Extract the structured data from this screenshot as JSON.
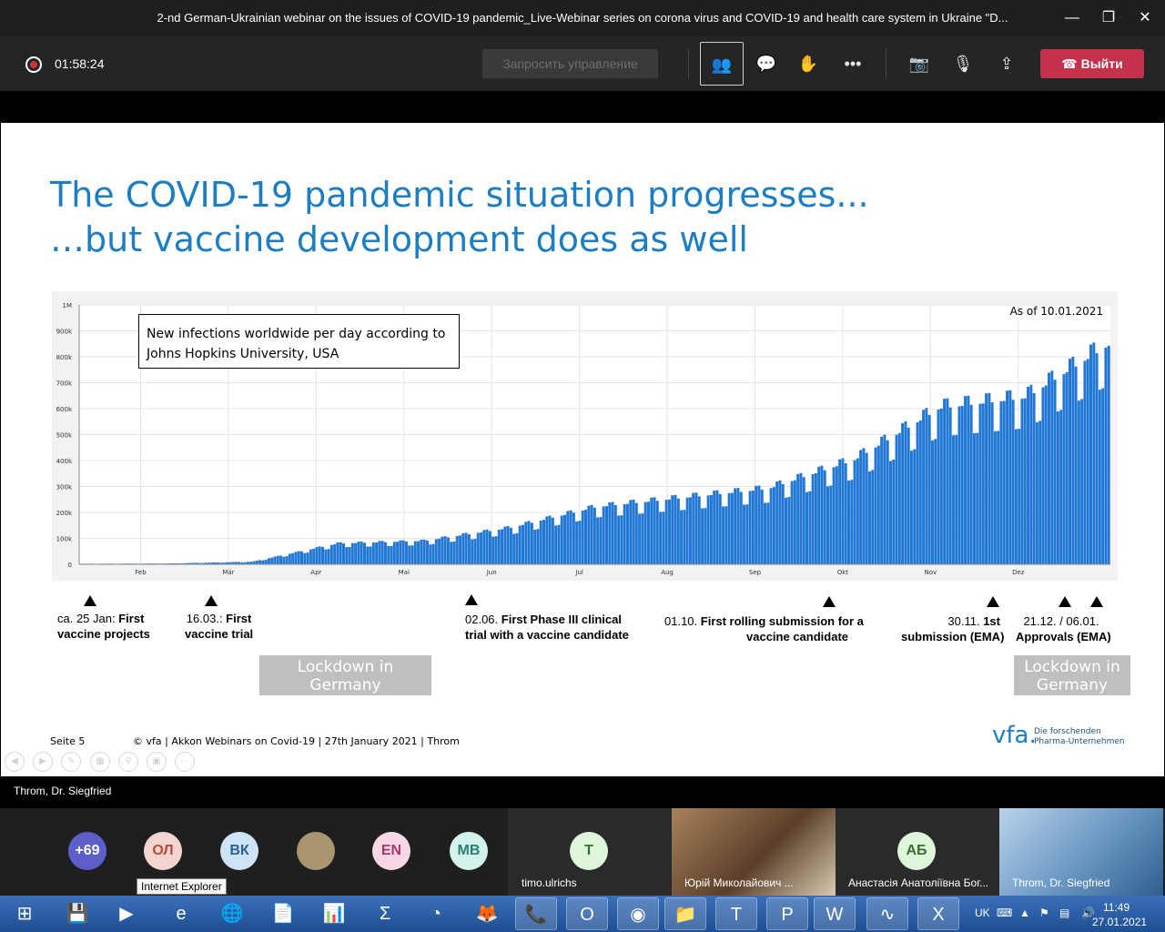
{
  "window": {
    "title": "2-nd German-Ukrainian webinar on the issues of COVID-19 pandemic_Live-Webinar series on corona virus and COVID-19 and health care system in Ukraine \"D...",
    "minimize_icon": "—",
    "maximize_icon": "❐",
    "close_icon": "✕"
  },
  "toolbar": {
    "recording_time": "01:58:24",
    "request_control": "Запросить управление",
    "leave_label": "Выйти",
    "icons": {
      "participants": "👥",
      "chat": "💬",
      "raise_hand": "✋",
      "more": "•••",
      "camera_off": "📷",
      "mic_off": "🎙",
      "share": "⇪",
      "phone": "☎"
    }
  },
  "slide": {
    "title_line1": "The COVID-19 pandemic situation progresses...",
    "title_line2": "…but vaccine development does as well",
    "legend_box": "New infections worldwide per day according to Johns Hopkins University, USA",
    "as_of": "As of 10.01.2021",
    "milestones": [
      {
        "prefix": "ca. 25 Jan:",
        "bold": " First",
        "line2": "vaccine projects"
      },
      {
        "prefix": "16.03.:",
        "bold": " First",
        "line2": "vaccine trial"
      },
      {
        "prefix": "02.06.",
        "bold": " First Phase III clinical",
        "line2": "trial with a vaccine candidate"
      },
      {
        "prefix": "01.10.",
        "bold": " First rolling submission for a",
        "line2": "vaccine candidate"
      },
      {
        "prefix": "30.11.",
        "bold": " 1st",
        "line2": "submission (EMA)"
      },
      {
        "prefix": "21.12. / 06.01.",
        "bold": "",
        "line2": "Approvals (EMA)"
      }
    ],
    "lockdown_1": "Lockdown in Germany",
    "lockdown_2": "Lockdown in Germany",
    "footer_page": "Seite 5",
    "footer_text": "© vfa | Akkon Webinars on Covid-19 | 27th January 2021 | Throm",
    "logo": "vfa.",
    "logo_sub1": "Die forschenden",
    "logo_sub2": "Pharma-Unternehmen"
  },
  "chart_data": {
    "type": "bar",
    "title": "New infections worldwide per day according to Johns Hopkins University, USA",
    "annotation": "As of 10.01.2021",
    "y_ticks": [
      "0",
      "100k",
      "200k",
      "300k",
      "400k",
      "500k",
      "600k",
      "700k",
      "800k",
      "900k",
      "1M"
    ],
    "x_ticks": [
      "Feb",
      "Mär",
      "Apr",
      "Mai",
      "Jun",
      "Jul",
      "Aug",
      "Sep",
      "Okt",
      "Nov",
      "Dez"
    ],
    "ylim": [
      0,
      1000000
    ],
    "grid": true,
    "monthly_levels_k": [
      {
        "x": "Jan",
        "value": 2
      },
      {
        "x": "Feb",
        "value": 3
      },
      {
        "x": "Mär",
        "value": 10
      },
      {
        "x": "Apr",
        "value": 80
      },
      {
        "x": "Mai",
        "value": 90
      },
      {
        "x": "Jun",
        "value": 140
      },
      {
        "x": "Jul",
        "value": 220
      },
      {
        "x": "Aug",
        "value": 255
      },
      {
        "x": "Sep",
        "value": 290
      },
      {
        "x": "Okt",
        "value": 400
      },
      {
        "x": "Nov",
        "value": 600
      },
      {
        "x": "Dez",
        "value": 640
      },
      {
        "x": "Jan",
        "value": 850
      }
    ]
  },
  "presenter": "Throm, Dr. Siegfried",
  "participants": {
    "more_count": "+69",
    "avatars": [
      "ОЛ",
      "ВК",
      "EN",
      "МВ"
    ],
    "tile_avatar": "T",
    "tile_avatar_2": "АБ",
    "names": [
      "timo.ulrichs",
      "Юрій Миколайович ...",
      "Анастасія Анатоліївна Бог...",
      "Throm, Dr. Siegfried"
    ],
    "tooltip": "Internet Explorer",
    "colors": {
      "violet": "#5b5fc7",
      "rose": "#f4d4d0",
      "blue": "#cde3f7",
      "pink": "#f7d7e6",
      "mint": "#d3f2ec",
      "green": "#dff6dd"
    }
  },
  "taskbar": {
    "language": "UK",
    "time": "11:49",
    "date": "27.01.2021",
    "apps": [
      "⊞",
      "💾",
      "▶",
      "e",
      "🌐",
      "📄",
      "📊",
      "Σ",
      "◔",
      "🦊",
      "📞",
      "O",
      "◉",
      "📁",
      "T",
      "P",
      "W",
      "∿",
      "X"
    ]
  },
  "accent_color": "#1c7dc2"
}
